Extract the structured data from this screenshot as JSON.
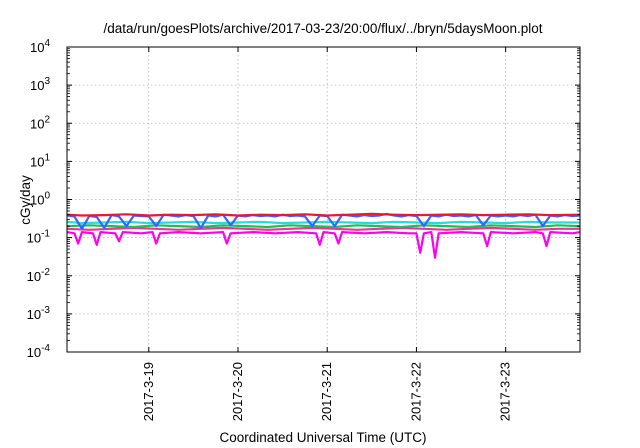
{
  "chart_data": {
    "type": "line",
    "title": "/data/run/goesPlots/archive/2017-03-23/20:00/flux/../bryn/5daysMoon.plot",
    "xlabel": "Coordinated Universal Time (UTC)",
    "ylabel": "cGy/day",
    "x_range": [
      "2017-03-18 02:00",
      "2017-03-23 20:00"
    ],
    "y_scale": "log",
    "ylim": [
      0.0001,
      10000
    ],
    "y_ticks": [
      {
        "value": 0.0001,
        "mantissa": "10",
        "exp": "-4"
      },
      {
        "value": 0.001,
        "mantissa": "10",
        "exp": "-3"
      },
      {
        "value": 0.01,
        "mantissa": "10",
        "exp": "-2"
      },
      {
        "value": 0.1,
        "mantissa": "10",
        "exp": "-1"
      },
      {
        "value": 1,
        "mantissa": "10",
        "exp": "0"
      },
      {
        "value": 10,
        "mantissa": "10",
        "exp": "1"
      },
      {
        "value": 100,
        "mantissa": "10",
        "exp": "2"
      },
      {
        "value": 1000,
        "mantissa": "10",
        "exp": "3"
      },
      {
        "value": 10000,
        "mantissa": "10",
        "exp": "4"
      }
    ],
    "x_ticks": [
      {
        "label": "2017-3-19",
        "value": "2017-03-19 00:00"
      },
      {
        "label": "2017-3-20",
        "value": "2017-03-20 00:00"
      },
      {
        "label": "2017-3-21",
        "value": "2017-03-21 00:00"
      },
      {
        "label": "2017-3-22",
        "value": "2017-03-22 00:00"
      },
      {
        "label": "2017-3-23",
        "value": "2017-03-23 00:00"
      }
    ],
    "grid": true,
    "series": [
      {
        "color": "#3366ff",
        "level": 0.36,
        "points": [
          [
            "2017-03-18 02:00",
            0.38
          ],
          [
            "2017-03-18 04:00",
            0.36
          ],
          [
            "2017-03-18 06:00",
            0.17
          ],
          [
            "2017-03-18 08:00",
            0.37
          ],
          [
            "2017-03-18 10:00",
            0.35
          ],
          [
            "2017-03-18 12:00",
            0.18
          ],
          [
            "2017-03-18 14:00",
            0.39
          ],
          [
            "2017-03-18 16:00",
            0.36
          ],
          [
            "2017-03-18 18:00",
            0.2
          ],
          [
            "2017-03-18 20:00",
            0.38
          ],
          [
            "2017-03-18 22:00",
            0.37
          ],
          [
            "2017-03-19 00:00",
            0.36
          ],
          [
            "2017-03-19 02:00",
            0.2
          ],
          [
            "2017-03-19 04:00",
            0.4
          ],
          [
            "2017-03-19 06:00",
            0.38
          ],
          [
            "2017-03-19 08:00",
            0.36
          ],
          [
            "2017-03-19 10:00",
            0.39
          ],
          [
            "2017-03-19 12:00",
            0.37
          ],
          [
            "2017-03-19 14:00",
            0.18
          ],
          [
            "2017-03-19 16:00",
            0.38
          ],
          [
            "2017-03-19 18:00",
            0.36
          ],
          [
            "2017-03-19 20:00",
            0.4
          ],
          [
            "2017-03-19 22:00",
            0.21
          ],
          [
            "2017-03-20 00:00",
            0.38
          ],
          [
            "2017-03-20 02:00",
            0.36
          ],
          [
            "2017-03-20 04:00",
            0.39
          ],
          [
            "2017-03-20 06:00",
            0.37
          ],
          [
            "2017-03-20 08:00",
            0.38
          ],
          [
            "2017-03-20 10:00",
            0.36
          ],
          [
            "2017-03-20 12:00",
            0.4
          ],
          [
            "2017-03-20 14:00",
            0.37
          ],
          [
            "2017-03-20 16:00",
            0.38
          ],
          [
            "2017-03-20 18:00",
            0.36
          ],
          [
            "2017-03-20 20:00",
            0.2
          ],
          [
            "2017-03-20 22:00",
            0.38
          ],
          [
            "2017-03-21 00:00",
            0.37
          ],
          [
            "2017-03-21 02:00",
            0.2
          ],
          [
            "2017-03-21 04:00",
            0.4
          ],
          [
            "2017-03-21 06:00",
            0.38
          ],
          [
            "2017-03-21 08:00",
            0.36
          ],
          [
            "2017-03-21 10:00",
            0.39
          ],
          [
            "2017-03-21 12:00",
            0.37
          ],
          [
            "2017-03-21 14:00",
            0.38
          ],
          [
            "2017-03-21 16:00",
            0.42
          ],
          [
            "2017-03-21 18:00",
            0.38
          ],
          [
            "2017-03-21 20:00",
            0.36
          ],
          [
            "2017-03-21 22:00",
            0.39
          ],
          [
            "2017-03-22 00:00",
            0.37
          ],
          [
            "2017-03-22 02:00",
            0.2
          ],
          [
            "2017-03-22 04:00",
            0.38
          ],
          [
            "2017-03-22 06:00",
            0.36
          ],
          [
            "2017-03-22 08:00",
            0.4
          ],
          [
            "2017-03-22 10:00",
            0.37
          ],
          [
            "2017-03-22 12:00",
            0.38
          ],
          [
            "2017-03-22 14:00",
            0.36
          ],
          [
            "2017-03-22 16:00",
            0.39
          ],
          [
            "2017-03-22 18:00",
            0.21
          ],
          [
            "2017-03-22 20:00",
            0.38
          ],
          [
            "2017-03-22 22:00",
            0.36
          ],
          [
            "2017-03-23 00:00",
            0.38
          ],
          [
            "2017-03-23 02:00",
            0.36
          ],
          [
            "2017-03-23 04:00",
            0.39
          ],
          [
            "2017-03-23 06:00",
            0.37
          ],
          [
            "2017-03-23 08:00",
            0.4
          ],
          [
            "2017-03-23 10:00",
            0.2
          ],
          [
            "2017-03-23 12:00",
            0.38
          ],
          [
            "2017-03-23 14:00",
            0.36
          ],
          [
            "2017-03-23 16:00",
            0.39
          ],
          [
            "2017-03-23 18:00",
            0.37
          ],
          [
            "2017-03-23 20:00",
            0.38
          ]
        ]
      },
      {
        "color": "#e8192c",
        "level": 0.39,
        "points": [
          [
            "2017-03-18 02:00",
            0.4
          ],
          [
            "2017-03-18 06:00",
            0.38
          ],
          [
            "2017-03-18 12:00",
            0.39
          ],
          [
            "2017-03-18 18:00",
            0.41
          ],
          [
            "2017-03-19 00:00",
            0.38
          ],
          [
            "2017-03-19 06:00",
            0.4
          ],
          [
            "2017-03-19 12:00",
            0.39
          ],
          [
            "2017-03-19 18:00",
            0.41
          ],
          [
            "2017-03-20 00:00",
            0.38
          ],
          [
            "2017-03-20 06:00",
            0.4
          ],
          [
            "2017-03-20 12:00",
            0.39
          ],
          [
            "2017-03-20 18:00",
            0.41
          ],
          [
            "2017-03-21 00:00",
            0.38
          ],
          [
            "2017-03-21 06:00",
            0.4
          ],
          [
            "2017-03-21 12:00",
            0.42
          ],
          [
            "2017-03-21 18:00",
            0.4
          ],
          [
            "2017-03-22 00:00",
            0.39
          ],
          [
            "2017-03-22 06:00",
            0.4
          ],
          [
            "2017-03-22 12:00",
            0.41
          ],
          [
            "2017-03-22 18:00",
            0.39
          ],
          [
            "2017-03-23 00:00",
            0.4
          ],
          [
            "2017-03-23 06:00",
            0.41
          ],
          [
            "2017-03-23 12:00",
            0.39
          ],
          [
            "2017-03-23 20:00",
            0.4
          ]
        ]
      },
      {
        "color": "#22dddd",
        "level": 0.25,
        "points": [
          [
            "2017-03-18 02:00",
            0.26
          ],
          [
            "2017-03-18 06:00",
            0.24
          ],
          [
            "2017-03-18 12:00",
            0.25
          ],
          [
            "2017-03-18 18:00",
            0.26
          ],
          [
            "2017-03-19 00:00",
            0.24
          ],
          [
            "2017-03-19 06:00",
            0.25
          ],
          [
            "2017-03-19 12:00",
            0.26
          ],
          [
            "2017-03-19 18:00",
            0.24
          ],
          [
            "2017-03-20 00:00",
            0.25
          ],
          [
            "2017-03-20 06:00",
            0.26
          ],
          [
            "2017-03-20 12:00",
            0.24
          ],
          [
            "2017-03-20 18:00",
            0.25
          ],
          [
            "2017-03-21 00:00",
            0.26
          ],
          [
            "2017-03-21 06:00",
            0.25
          ],
          [
            "2017-03-21 12:00",
            0.24
          ],
          [
            "2017-03-21 18:00",
            0.26
          ],
          [
            "2017-03-22 00:00",
            0.25
          ],
          [
            "2017-03-22 06:00",
            0.24
          ],
          [
            "2017-03-22 12:00",
            0.26
          ],
          [
            "2017-03-22 18:00",
            0.25
          ],
          [
            "2017-03-23 00:00",
            0.24
          ],
          [
            "2017-03-23 06:00",
            0.26
          ],
          [
            "2017-03-23 12:00",
            0.25
          ],
          [
            "2017-03-23 20:00",
            0.25
          ]
        ]
      },
      {
        "color": "#22bb55",
        "level": 0.2,
        "points": [
          [
            "2017-03-18 02:00",
            0.2
          ],
          [
            "2017-03-18 08:00",
            0.21
          ],
          [
            "2017-03-18 14:00",
            0.2
          ],
          [
            "2017-03-18 20:00",
            0.19
          ],
          [
            "2017-03-19 02:00",
            0.21
          ],
          [
            "2017-03-19 08:00",
            0.2
          ],
          [
            "2017-03-19 14:00",
            0.19
          ],
          [
            "2017-03-19 20:00",
            0.21
          ],
          [
            "2017-03-20 02:00",
            0.2
          ],
          [
            "2017-03-20 08:00",
            0.19
          ],
          [
            "2017-03-20 14:00",
            0.21
          ],
          [
            "2017-03-20 20:00",
            0.2
          ],
          [
            "2017-03-21 02:00",
            0.19
          ],
          [
            "2017-03-21 08:00",
            0.21
          ],
          [
            "2017-03-21 14:00",
            0.2
          ],
          [
            "2017-03-21 20:00",
            0.19
          ],
          [
            "2017-03-22 02:00",
            0.21
          ],
          [
            "2017-03-22 08:00",
            0.2
          ],
          [
            "2017-03-22 14:00",
            0.19
          ],
          [
            "2017-03-22 20:00",
            0.21
          ],
          [
            "2017-03-23 02:00",
            0.2
          ],
          [
            "2017-03-23 08:00",
            0.19
          ],
          [
            "2017-03-23 14:00",
            0.21
          ],
          [
            "2017-03-23 20:00",
            0.2
          ]
        ]
      },
      {
        "color": "#ee3399",
        "level": 0.17,
        "points": [
          [
            "2017-03-18 02:00",
            0.17
          ],
          [
            "2017-03-18 08:00",
            0.16
          ],
          [
            "2017-03-18 14:00",
            0.17
          ],
          [
            "2017-03-18 20:00",
            0.18
          ],
          [
            "2017-03-19 02:00",
            0.17
          ],
          [
            "2017-03-19 08:00",
            0.16
          ],
          [
            "2017-03-19 14:00",
            0.17
          ],
          [
            "2017-03-19 20:00",
            0.18
          ],
          [
            "2017-03-20 02:00",
            0.17
          ],
          [
            "2017-03-20 08:00",
            0.16
          ],
          [
            "2017-03-20 14:00",
            0.17
          ],
          [
            "2017-03-20 20:00",
            0.18
          ],
          [
            "2017-03-21 02:00",
            0.17
          ],
          [
            "2017-03-21 08:00",
            0.16
          ],
          [
            "2017-03-21 14:00",
            0.17
          ],
          [
            "2017-03-21 20:00",
            0.18
          ],
          [
            "2017-03-22 02:00",
            0.17
          ],
          [
            "2017-03-22 08:00",
            0.16
          ],
          [
            "2017-03-22 14:00",
            0.17
          ],
          [
            "2017-03-22 20:00",
            0.18
          ],
          [
            "2017-03-23 02:00",
            0.17
          ],
          [
            "2017-03-23 08:00",
            0.16
          ],
          [
            "2017-03-23 14:00",
            0.17
          ],
          [
            "2017-03-23 20:00",
            0.17
          ]
        ]
      },
      {
        "color": "#ff00ee",
        "level": 0.14,
        "points": [
          [
            "2017-03-18 02:00",
            0.14
          ],
          [
            "2017-03-18 04:00",
            0.13
          ],
          [
            "2017-03-18 05:00",
            0.07
          ],
          [
            "2017-03-18 06:00",
            0.14
          ],
          [
            "2017-03-18 09:00",
            0.13
          ],
          [
            "2017-03-18 10:00",
            0.065
          ],
          [
            "2017-03-18 11:00",
            0.14
          ],
          [
            "2017-03-18 15:00",
            0.13
          ],
          [
            "2017-03-18 16:00",
            0.08
          ],
          [
            "2017-03-18 17:00",
            0.14
          ],
          [
            "2017-03-18 22:00",
            0.13
          ],
          [
            "2017-03-19 01:00",
            0.14
          ],
          [
            "2017-03-19 02:00",
            0.07
          ],
          [
            "2017-03-19 03:00",
            0.13
          ],
          [
            "2017-03-19 08:00",
            0.14
          ],
          [
            "2017-03-19 14:00",
            0.13
          ],
          [
            "2017-03-19 20:00",
            0.14
          ],
          [
            "2017-03-19 21:00",
            0.07
          ],
          [
            "2017-03-19 22:00",
            0.13
          ],
          [
            "2017-03-20 04:00",
            0.14
          ],
          [
            "2017-03-20 10:00",
            0.13
          ],
          [
            "2017-03-20 16:00",
            0.14
          ],
          [
            "2017-03-20 21:00",
            0.13
          ],
          [
            "2017-03-20 22:00",
            0.065
          ],
          [
            "2017-03-20 23:00",
            0.14
          ],
          [
            "2017-03-21 02:00",
            0.13
          ],
          [
            "2017-03-21 03:00",
            0.07
          ],
          [
            "2017-03-21 04:00",
            0.14
          ],
          [
            "2017-03-21 10:00",
            0.13
          ],
          [
            "2017-03-21 16:00",
            0.14
          ],
          [
            "2017-03-21 22:00",
            0.13
          ],
          [
            "2017-03-22 00:00",
            0.13
          ],
          [
            "2017-03-22 01:00",
            0.04
          ],
          [
            "2017-03-22 02:00",
            0.13
          ],
          [
            "2017-03-22 04:00",
            0.14
          ],
          [
            "2017-03-22 05:00",
            0.03
          ],
          [
            "2017-03-22 06:00",
            0.13
          ],
          [
            "2017-03-22 12:00",
            0.14
          ],
          [
            "2017-03-22 18:00",
            0.13
          ],
          [
            "2017-03-22 19:00",
            0.06
          ],
          [
            "2017-03-22 20:00",
            0.14
          ],
          [
            "2017-03-23 02:00",
            0.13
          ],
          [
            "2017-03-23 08:00",
            0.14
          ],
          [
            "2017-03-23 10:00",
            0.13
          ],
          [
            "2017-03-23 11:00",
            0.06
          ],
          [
            "2017-03-23 12:00",
            0.14
          ],
          [
            "2017-03-23 18:00",
            0.13
          ],
          [
            "2017-03-23 20:00",
            0.14
          ]
        ]
      }
    ]
  }
}
